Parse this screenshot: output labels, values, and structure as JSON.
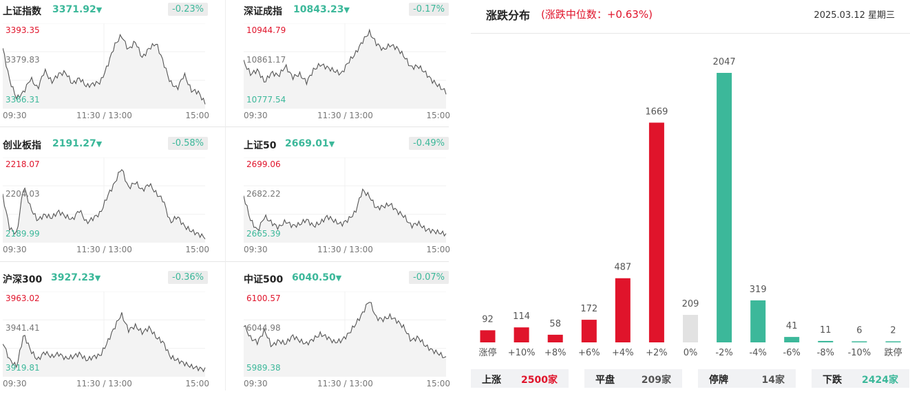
{
  "colors": {
    "up": "#e0142b",
    "down": "#3cb89a",
    "flat": "#e2e2e2",
    "line": "#555555"
  },
  "indices": [
    {
      "name": "上证指数",
      "price": "3371.92",
      "arrow": "▼",
      "change": "-0.23%",
      "y_high": "3393.35",
      "y_mid": "3379.83",
      "y_low": "3366.31",
      "x_labels": [
        "09:30",
        "11:30 / 13:00",
        "15:00"
      ]
    },
    {
      "name": "深证成指",
      "price": "10843.23",
      "arrow": "▼",
      "change": "-0.17%",
      "y_high": "10944.79",
      "y_mid": "10861.17",
      "y_low": "10777.54",
      "x_labels": [
        "09:30",
        "11:30 / 13:00",
        "15:00"
      ]
    },
    {
      "name": "创业板指",
      "price": "2191.27",
      "arrow": "▼",
      "change": "-0.58%",
      "y_high": "2218.07",
      "y_mid": "2204.03",
      "y_low": "2189.99",
      "x_labels": [
        "09:30",
        "11:30 / 13:00",
        "15:00"
      ]
    },
    {
      "name": "上证50",
      "price": "2669.01",
      "arrow": "▼",
      "change": "-0.49%",
      "y_high": "2699.06",
      "y_mid": "2682.22",
      "y_low": "2665.39",
      "x_labels": [
        "09:30",
        "11:30 / 13:00",
        "15:00"
      ]
    },
    {
      "name": "沪深300",
      "price": "3927.23",
      "arrow": "▼",
      "change": "-0.36%",
      "y_high": "3963.02",
      "y_mid": "3941.41",
      "y_low": "3919.81",
      "x_labels": [
        "09:30",
        "11:30 / 13:00",
        "15:00"
      ]
    },
    {
      "name": "中证500",
      "price": "6040.50",
      "arrow": "▼",
      "change": "-0.07%",
      "y_high": "6100.57",
      "y_mid": "6044.98",
      "y_low": "5989.38",
      "x_labels": [
        "09:30",
        "11:30 / 13:00",
        "15:00"
      ]
    }
  ],
  "distribution": {
    "title": "涨跌分布",
    "median_text": "(涨跌中位数：+0.63%)",
    "date": "2025.03.12 星期三"
  },
  "chart_data": {
    "type": "bar",
    "title": "涨跌分布",
    "categories": [
      "涨停",
      "+10%",
      "+8%",
      "+6%",
      "+4%",
      "+2%",
      "0%",
      "-2%",
      "-4%",
      "-6%",
      "-8%",
      "-10%",
      "跌停"
    ],
    "values": [
      92,
      114,
      58,
      172,
      487,
      1669,
      209,
      2047,
      319,
      41,
      11,
      6,
      2
    ],
    "ylim": [
      0,
      2047
    ],
    "bar_colors": [
      "#e0142b",
      "#e0142b",
      "#e0142b",
      "#e0142b",
      "#e0142b",
      "#e0142b",
      "#e2e2e2",
      "#3cb89a",
      "#3cb89a",
      "#3cb89a",
      "#3cb89a",
      "#3cb89a",
      "#3cb89a"
    ]
  },
  "summary": [
    {
      "label": "上涨",
      "value": "2500家",
      "color": "#e0142b"
    },
    {
      "label": "平盘",
      "value": "209家",
      "color": "#555555"
    },
    {
      "label": "停牌",
      "value": "14家",
      "color": "#555555"
    },
    {
      "label": "下跌",
      "value": "2424家",
      "color": "#3cb89a"
    }
  ]
}
